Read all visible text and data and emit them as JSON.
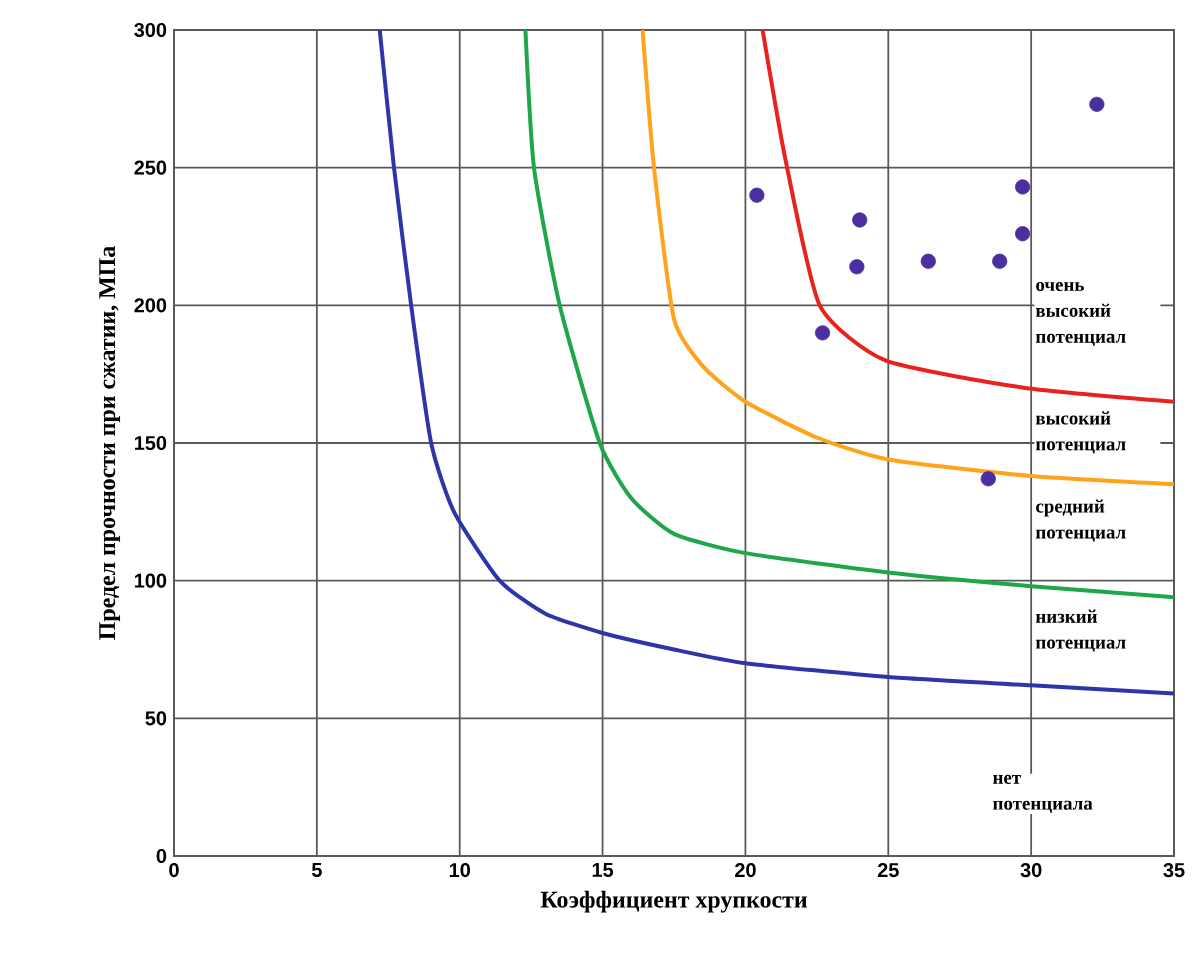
{
  "chart_data": {
    "type": "line",
    "xlabel": "Коэффициент хрупкости",
    "ylabel": "Предел прочности при сжатии, МПа",
    "xlim": [
      0,
      35
    ],
    "ylim": [
      0,
      300
    ],
    "xticks": [
      0,
      5,
      10,
      15,
      20,
      25,
      30,
      35
    ],
    "yticks": [
      0,
      50,
      100,
      150,
      200,
      250,
      300
    ],
    "grid": true,
    "series": [
      {
        "color": "#2e35a8",
        "x": [
          7.2,
          7.7,
          8.3,
          9,
          9.8,
          11.4,
          13,
          15,
          17.5,
          20,
          25,
          30,
          35
        ],
        "values": [
          300,
          250,
          200,
          150,
          125,
          100,
          88,
          81,
          75,
          70,
          65,
          62,
          59
        ]
      },
      {
        "color": "#1fa64a",
        "x": [
          12.3,
          12.6,
          13.5,
          14.9,
          16,
          17.5,
          20,
          25,
          30,
          35
        ],
        "values": [
          300,
          250,
          200,
          150,
          130,
          117,
          110,
          103,
          98,
          94
        ]
      },
      {
        "color": "#ffa31a",
        "x": [
          16.4,
          16.8,
          17.5,
          18.5,
          20,
          22.5,
          25,
          30,
          35
        ],
        "values": [
          300,
          250,
          195,
          178,
          165,
          152,
          144,
          138,
          135
        ]
      },
      {
        "color": "#e8231f",
        "x": [
          20.6,
          21.4,
          22.6,
          24.9,
          29.8,
          35
        ],
        "values": [
          300,
          253,
          200,
          180,
          170,
          165
        ]
      },
      {
        "type": "scatter",
        "marker": "circle",
        "color": "#4b2ea0",
        "x": [
          20.4,
          24.0,
          23.9,
          26.4,
          28.9,
          29.7,
          29.7,
          32.3,
          22.7,
          28.5
        ],
        "values": [
          240,
          231,
          214,
          216,
          216,
          226,
          243,
          273,
          190,
          137
        ]
      }
    ],
    "annotations": [
      "очень высокий потенциал",
      "высокий потенциал",
      "средний потенциал",
      "низкий потенциал",
      "нет потенциала"
    ]
  }
}
